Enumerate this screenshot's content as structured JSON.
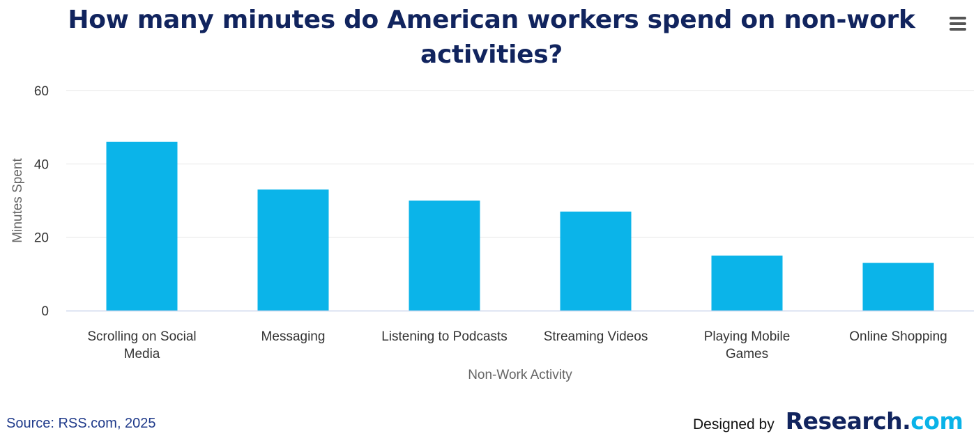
{
  "chart_data": {
    "type": "bar",
    "title": "How many minutes do American workers spend on non-work activities?",
    "xlabel": "Non-Work Activity",
    "ylabel": "Minutes Spent",
    "categories": [
      [
        "Scrolling on Social",
        "Media"
      ],
      [
        "Messaging"
      ],
      [
        "Listening to Podcasts"
      ],
      [
        "Streaming Videos"
      ],
      [
        "Playing Mobile",
        "Games"
      ],
      [
        "Online Shopping"
      ]
    ],
    "values": [
      46,
      33,
      30,
      27,
      15,
      13
    ],
    "ylim": [
      0,
      60
    ],
    "yticks": [
      0,
      20,
      40,
      60
    ],
    "grid": true,
    "bar_color": "#0bb4e9",
    "grid_color": "#e6e6e6",
    "axis_color": "#ccd6eb"
  },
  "menu": {
    "icon": "hamburger-menu-icon"
  },
  "footer": {
    "source": "Source: RSS.com, 2025",
    "designed_by": "Designed by",
    "logo_main": "Research",
    "logo_dot": ".",
    "logo_tld": "com"
  },
  "colors": {
    "title": "#11245e",
    "source": "#1f3a8a",
    "logo_accent": "#0ab3e8"
  }
}
